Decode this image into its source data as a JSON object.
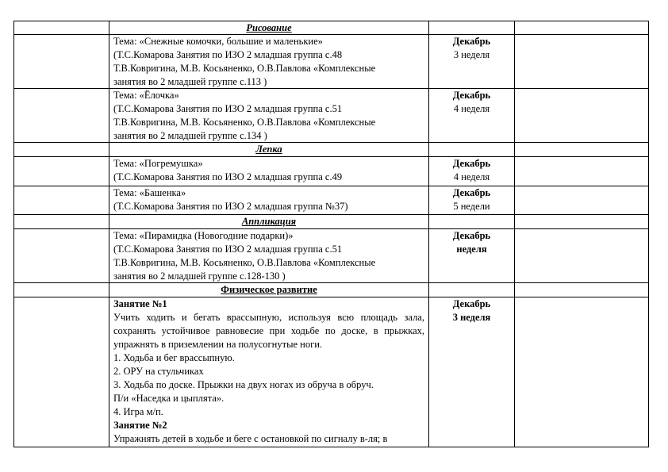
{
  "sections": [
    {
      "title": "Рисование",
      "rows": [
        {
          "lines": [
            "Тема: «Снежные комочки, большие и маленькие»",
            "(Т.С.Комарова Занятия по ИЗО 2 младшая группа с.48",
            "Т.В.Ковригина, М.В. Косьяненко, О.В.Павлова «Комплексные",
            "занятия во 2 младшей группе с.113 )"
          ],
          "month": "Декабрь",
          "week": "3 неделя"
        },
        {
          "lines": [
            "Тема: «Ёлочка»",
            "(Т.С.Комарова Занятия по ИЗО 2 младшая группа с.51",
            "Т.В.Ковригина, М.В. Косьяненко, О.В.Павлова «Комплексные",
            "занятия во 2 младшей группе с.134 )"
          ],
          "month": "Декабрь",
          "week": "4 неделя"
        }
      ]
    },
    {
      "title": "Лепка",
      "rows": [
        {
          "lines": [
            "Тема: «Погремушка»",
            "(Т.С.Комарова Занятия по ИЗО 2 младшая группа с.49"
          ],
          "month": "Декабрь",
          "week": "4 неделя"
        },
        {
          "lines": [
            "Тема: «Башенка»",
            "(Т.С.Комарова Занятия по ИЗО 2 младшая группа №37)"
          ],
          "month": "Декабрь",
          "week": "5 недели"
        }
      ]
    },
    {
      "title": "Аппликация",
      "rows": [
        {
          "lines": [
            "Тема: «Пирамидка (Новогодние подарки)»",
            "(Т.С.Комарова Занятия по ИЗО 2 младшая группа с.51",
            "Т.В.Ковригина, М.В. Косьяненко, О.В.Павлова «Комплексные",
            "занятия во 2 младшей группе с.128-130 )"
          ],
          "month": "Декабрь",
          "week": "неделя"
        }
      ]
    },
    {
      "title": "Физическое развитие",
      "rows": [
        {
          "blocks": [
            {
              "heading": "Занятие №1",
              "text": "Учить ходить и бегать врассыпную, используя всю площадь зала, сохранять устойчивое равновесие при ходьбе по доске, в прыжках, упражнять в приземлении на полусогнутые ноги.",
              "items": [
                "1. Ходьба и бег врассыпную.",
                "2. ОРУ на стульчиках",
                "3. Ходьба по доске. Прыжки на двух ногах из обруча в обруч.",
                "П/и «Наседка и цыплята».",
                "4. Игра м/п."
              ]
            },
            {
              "heading": "Занятие №2",
              "text": "Упражнять детей в ходьбе и беге с остановкой по сигналу в-ля; в",
              "items": []
            }
          ],
          "month": "Декабрь",
          "week": "3 неделя"
        }
      ]
    }
  ]
}
